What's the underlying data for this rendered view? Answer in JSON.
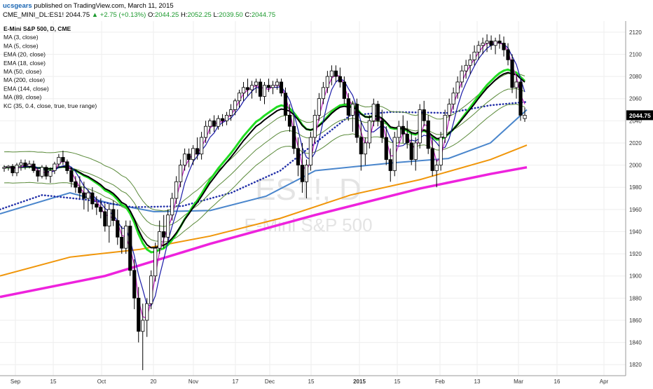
{
  "header": {
    "username": "ucsgears",
    "published_text": "published on TradingView.com, March 11, 2015",
    "symbol": "CME_MINI_DL:ES1!",
    "last": "2044.75",
    "change": "+2.75 (+0.13%)",
    "open_label": "O:",
    "open": "2044.25",
    "high_label": "H:",
    "high": "2052.25",
    "low_label": "L:",
    "low": "2039.50",
    "close_label": "C:",
    "close": "2044.75"
  },
  "legend": [
    "E-Mini S&P 500, D, CME",
    "MA (3, close)",
    "MA (5, close)",
    "EMA (20, close)",
    "EMA (18, close)",
    "MA (50, close)",
    "MA (200, close)",
    "EMA (144, close)",
    "MA (89, close)",
    "KC (35, 0.4, close, true, true range)"
  ],
  "watermark": {
    "symbol": "ES1!, D",
    "name": "E-Mini S&P 500"
  },
  "price_label": "2044.75",
  "colors": {
    "ma3": "#c21ec2",
    "ma5": "#1a1aa8",
    "ema20": "#000000",
    "ema18": "#22dd22",
    "ma50": "#2230a8",
    "ma200": "#ee22dd",
    "ema144": "#f0960a",
    "ma89": "#4a86cc",
    "kc": "#5a8a3a",
    "candle_up": "#ffffff",
    "candle_down": "#000000"
  },
  "chart_data": {
    "type": "candlestick",
    "title": "E-Mini S&P 500, D, CME",
    "ylim": [
      1810,
      2130
    ],
    "y_ticks": [
      1820,
      1840,
      1860,
      1880,
      1900,
      1920,
      1940,
      1960,
      1980,
      2000,
      2020,
      2040,
      2060,
      2080,
      2100,
      2120
    ],
    "x_ticks": [
      "Sep",
      "15",
      "Oct",
      "20",
      "Nov",
      "17",
      "Dec",
      "15",
      "2015",
      "15",
      "Feb",
      "13",
      "Mar",
      "16",
      "Apr"
    ],
    "ohlc": [
      [
        1997,
        2000,
        1994,
        1998
      ],
      [
        1998,
        2000,
        1995,
        1999
      ],
      [
        1999,
        2001,
        1990,
        1993
      ],
      [
        1993,
        2002,
        1990,
        2000
      ],
      [
        2000,
        2005,
        1995,
        2002
      ],
      [
        2002,
        2005,
        1996,
        1999
      ],
      [
        1999,
        2004,
        1997,
        2001
      ],
      [
        2001,
        2004,
        1993,
        1995
      ],
      [
        1995,
        1998,
        1985,
        1990
      ],
      [
        1990,
        2000,
        1988,
        1998
      ],
      [
        1998,
        2000,
        1987,
        1990
      ],
      [
        1990,
        1998,
        1984,
        1995
      ],
      [
        1995,
        2003,
        1992,
        2001
      ],
      [
        2001,
        2010,
        1998,
        2007
      ],
      [
        2007,
        2013,
        2000,
        2003
      ],
      [
        2003,
        2005,
        1992,
        1995
      ],
      [
        1995,
        1998,
        1980,
        1985
      ],
      [
        1985,
        1990,
        1975,
        1980
      ],
      [
        1980,
        1990,
        1970,
        1975
      ],
      [
        1975,
        1985,
        1960,
        1970
      ],
      [
        1970,
        1978,
        1958,
        1975
      ],
      [
        1975,
        1980,
        1960,
        1965
      ],
      [
        1965,
        1972,
        1955,
        1962
      ],
      [
        1962,
        1970,
        1952,
        1958
      ],
      [
        1958,
        1965,
        1940,
        1945
      ],
      [
        1945,
        1965,
        1930,
        1960
      ],
      [
        1960,
        1968,
        1945,
        1950
      ],
      [
        1950,
        1960,
        1928,
        1935
      ],
      [
        1935,
        1945,
        1920,
        1925
      ],
      [
        1925,
        1950,
        1920,
        1945
      ],
      [
        1945,
        1950,
        1900,
        1905
      ],
      [
        1905,
        1915,
        1870,
        1880
      ],
      [
        1880,
        1890,
        1840,
        1850
      ],
      [
        1850,
        1875,
        1815,
        1860
      ],
      [
        1860,
        1880,
        1845,
        1875
      ],
      [
        1875,
        1905,
        1870,
        1900
      ],
      [
        1900,
        1930,
        1895,
        1925
      ],
      [
        1925,
        1950,
        1920,
        1940
      ],
      [
        1940,
        1955,
        1925,
        1935
      ],
      [
        1935,
        1960,
        1930,
        1955
      ],
      [
        1955,
        1975,
        1950,
        1970
      ],
      [
        1970,
        1990,
        1965,
        1985
      ],
      [
        1985,
        2005,
        1980,
        2000
      ],
      [
        2000,
        2015,
        1995,
        2010
      ],
      [
        2010,
        2015,
        1998,
        2005
      ],
      [
        2005,
        2018,
        2000,
        2015
      ],
      [
        2015,
        2025,
        2005,
        2010
      ],
      [
        2010,
        2030,
        2005,
        2025
      ],
      [
        2025,
        2040,
        2020,
        2035
      ],
      [
        2035,
        2042,
        2028,
        2040
      ],
      [
        2040,
        2045,
        2030,
        2035
      ],
      [
        2035,
        2045,
        2032,
        2042
      ],
      [
        2042,
        2046,
        2035,
        2040
      ],
      [
        2040,
        2048,
        2036,
        2045
      ],
      [
        2045,
        2055,
        2040,
        2050
      ],
      [
        2050,
        2060,
        2045,
        2058
      ],
      [
        2058,
        2068,
        2052,
        2065
      ],
      [
        2065,
        2075,
        2058,
        2070
      ],
      [
        2070,
        2078,
        2062,
        2068
      ],
      [
        2068,
        2076,
        2060,
        2072
      ],
      [
        2072,
        2078,
        2065,
        2075
      ],
      [
        2075,
        2078,
        2058,
        2062
      ],
      [
        2062,
        2075,
        2055,
        2072
      ],
      [
        2072,
        2078,
        2066,
        2070
      ],
      [
        2070,
        2076,
        2064,
        2072
      ],
      [
        2072,
        2078,
        2068,
        2075
      ],
      [
        2075,
        2078,
        2062,
        2065
      ],
      [
        2065,
        2070,
        2040,
        2045
      ],
      [
        2045,
        2055,
        2030,
        2035
      ],
      [
        2035,
        2045,
        2010,
        2015
      ],
      [
        2015,
        2025,
        1990,
        2000
      ],
      [
        2000,
        2020,
        1975,
        1985
      ],
      [
        1985,
        2005,
        1970,
        2000
      ],
      [
        2000,
        2030,
        1995,
        2025
      ],
      [
        2025,
        2050,
        2020,
        2045
      ],
      [
        2045,
        2065,
        2040,
        2060
      ],
      [
        2060,
        2075,
        2055,
        2070
      ],
      [
        2070,
        2085,
        2065,
        2080
      ],
      [
        2080,
        2090,
        2072,
        2085
      ],
      [
        2085,
        2090,
        2075,
        2080
      ],
      [
        2080,
        2088,
        2070,
        2075
      ],
      [
        2075,
        2080,
        2055,
        2060
      ],
      [
        2060,
        2065,
        2040,
        2045
      ],
      [
        2045,
        2058,
        2030,
        2055
      ],
      [
        2055,
        2060,
        2020,
        2025
      ],
      [
        2025,
        2040,
        1995,
        2010
      ],
      [
        2010,
        2025,
        2000,
        2020
      ],
      [
        2020,
        2045,
        2015,
        2040
      ],
      [
        2040,
        2060,
        2035,
        2055
      ],
      [
        2055,
        2058,
        2035,
        2040
      ],
      [
        2040,
        2050,
        2020,
        2025
      ],
      [
        2025,
        2035,
        2000,
        2005
      ],
      [
        2005,
        2015,
        1985,
        1995
      ],
      [
        1995,
        2030,
        1990,
        2025
      ],
      [
        2025,
        2040,
        2020,
        2035
      ],
      [
        2035,
        2045,
        2020,
        2028
      ],
      [
        2028,
        2040,
        2015,
        2020
      ],
      [
        2020,
        2030,
        2000,
        2005
      ],
      [
        2005,
        2025,
        1995,
        2020
      ],
      [
        2020,
        2055,
        2015,
        2050
      ],
      [
        2050,
        2058,
        2035,
        2040
      ],
      [
        2040,
        2045,
        2010,
        2015
      ],
      [
        2015,
        2025,
        1990,
        1995
      ],
      [
        1995,
        2005,
        1980,
        2000
      ],
      [
        2000,
        2030,
        1995,
        2025
      ],
      [
        2025,
        2050,
        2020,
        2045
      ],
      [
        2045,
        2060,
        2040,
        2055
      ],
      [
        2055,
        2070,
        2050,
        2065
      ],
      [
        2065,
        2080,
        2060,
        2075
      ],
      [
        2075,
        2090,
        2070,
        2085
      ],
      [
        2085,
        2095,
        2078,
        2090
      ],
      [
        2090,
        2100,
        2082,
        2095
      ],
      [
        2095,
        2108,
        2090,
        2102
      ],
      [
        2102,
        2112,
        2095,
        2108
      ],
      [
        2108,
        2115,
        2100,
        2110
      ],
      [
        2110,
        2118,
        2102,
        2112
      ],
      [
        2112,
        2117,
        2104,
        2108
      ],
      [
        2108,
        2115,
        2100,
        2112
      ],
      [
        2112,
        2118,
        2105,
        2110
      ],
      [
        2110,
        2116,
        2098,
        2104
      ],
      [
        2104,
        2110,
        2090,
        2095
      ],
      [
        2095,
        2100,
        2065,
        2070
      ],
      [
        2070,
        2080,
        2060,
        2075
      ],
      [
        2075,
        2078,
        2040,
        2045
      ],
      [
        2042,
        2052,
        2039,
        2045
      ]
    ]
  }
}
